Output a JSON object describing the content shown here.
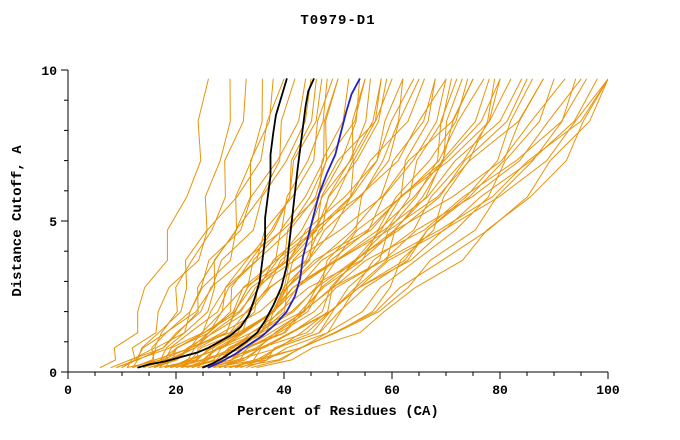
{
  "chart_data": {
    "type": "line",
    "title": "T0979-D1",
    "xlabel": "Percent of Residues (CA)",
    "ylabel": "Distance Cutoff, A",
    "xlim": [
      0,
      100
    ],
    "ylim": [
      0,
      10
    ],
    "x_major_ticks": [
      0,
      20,
      40,
      60,
      80,
      100
    ],
    "x_minor_step": 5,
    "y_major_ticks": [
      0,
      5,
      10
    ],
    "y_minor_step": 1,
    "grid": false,
    "legend": "none",
    "colors": {
      "ensemble": "#E8940B",
      "black_models": "#000000",
      "blue_model": "#2222CC",
      "axis": "#000000"
    },
    "highlight_series": [
      {
        "name": "black-model-1",
        "color": "#000000",
        "width": 1.8,
        "points": [
          [
            13,
            0.15
          ],
          [
            15,
            0.25
          ],
          [
            18,
            0.35
          ],
          [
            21,
            0.5
          ],
          [
            24,
            0.65
          ],
          [
            26,
            0.8
          ],
          [
            28,
            1.0
          ],
          [
            30,
            1.2
          ],
          [
            32,
            1.5
          ],
          [
            33.5,
            1.9
          ],
          [
            34.5,
            2.4
          ],
          [
            35.5,
            3.0
          ],
          [
            36,
            3.7
          ],
          [
            36.5,
            4.4
          ],
          [
            36.5,
            5.1
          ],
          [
            37,
            5.8
          ],
          [
            37.5,
            6.5
          ],
          [
            37.5,
            7.2
          ],
          [
            38,
            7.9
          ],
          [
            38.5,
            8.5
          ],
          [
            39.5,
            9.1
          ],
          [
            40.5,
            9.7
          ]
        ]
      },
      {
        "name": "black-model-2",
        "color": "#000000",
        "width": 1.8,
        "points": [
          [
            25,
            0.15
          ],
          [
            27,
            0.3
          ],
          [
            29,
            0.5
          ],
          [
            31,
            0.75
          ],
          [
            33,
            1.0
          ],
          [
            35,
            1.3
          ],
          [
            36.5,
            1.7
          ],
          [
            38,
            2.2
          ],
          [
            39.5,
            2.8
          ],
          [
            40.5,
            3.5
          ],
          [
            41,
            4.3
          ],
          [
            41.5,
            5.1
          ],
          [
            42,
            5.9
          ],
          [
            42.5,
            6.7
          ],
          [
            43,
            7.4
          ],
          [
            43.5,
            8.1
          ],
          [
            44,
            8.8
          ],
          [
            44.5,
            9.3
          ],
          [
            45.5,
            9.7
          ]
        ]
      },
      {
        "name": "blue-model",
        "color": "#2222CC",
        "width": 1.8,
        "points": [
          [
            26,
            0.15
          ],
          [
            28.5,
            0.35
          ],
          [
            31,
            0.6
          ],
          [
            33.5,
            0.9
          ],
          [
            36,
            1.2
          ],
          [
            38.5,
            1.6
          ],
          [
            40.5,
            2.0
          ],
          [
            42,
            2.5
          ],
          [
            43,
            3.1
          ],
          [
            43.5,
            3.8
          ],
          [
            44.5,
            4.5
          ],
          [
            45.5,
            5.2
          ],
          [
            46.5,
            5.9
          ],
          [
            48,
            6.6
          ],
          [
            49.5,
            7.2
          ],
          [
            50.5,
            7.9
          ],
          [
            51.5,
            8.6
          ],
          [
            52.5,
            9.2
          ],
          [
            54,
            9.7
          ]
        ]
      }
    ],
    "ensemble": {
      "color": "#E8940B",
      "width": 1,
      "y_levels": [
        0.15,
        0.4,
        0.8,
        1.3,
        2.0,
        2.8,
        3.7,
        4.7,
        5.8,
        7.0,
        8.3,
        9.7
      ],
      "profiles": {
        "A": [
          0,
          0.15,
          0.28,
          0.4,
          0.5,
          0.58,
          0.66,
          0.74,
          0.82,
          0.89,
          0.95,
          1
        ],
        "B": [
          0,
          0.08,
          0.17,
          0.27,
          0.37,
          0.47,
          0.57,
          0.67,
          0.77,
          0.86,
          0.94,
          1
        ],
        "C": [
          0,
          0.04,
          0.09,
          0.16,
          0.24,
          0.33,
          0.44,
          0.56,
          0.69,
          0.81,
          0.92,
          1
        ]
      },
      "jitters": [
        [
          0,
          1.2,
          -0.8,
          1.5,
          -0.5,
          -1.2,
          1.0,
          -1.0,
          0.6,
          1.4,
          -0.7,
          0
        ],
        [
          0,
          -1.0,
          1.3,
          0.4,
          1.1,
          -1.4,
          -0.6,
          0.9,
          1.2,
          -0.9,
          0.8,
          0
        ],
        [
          0,
          0.7,
          -1.2,
          -0.6,
          1.4,
          0.8,
          -1.1,
          1.2,
          -0.8,
          0.5,
          1.1,
          0
        ]
      ],
      "curves": [
        {
          "x0": 6,
          "x1": 26,
          "p": "B",
          "j": 0
        },
        {
          "x0": 8,
          "x1": 38,
          "p": "A",
          "j": 1
        },
        {
          "x0": 9,
          "x1": 30,
          "p": "A",
          "j": 2
        },
        {
          "x0": 9,
          "x1": 45,
          "p": "B",
          "j": 2
        },
        {
          "x0": 10,
          "x1": 40,
          "p": "C",
          "j": 0
        },
        {
          "x0": 10,
          "x1": 55,
          "p": "B",
          "j": 1
        },
        {
          "x0": 11,
          "x1": 33,
          "p": "B",
          "j": 1
        },
        {
          "x0": 11,
          "x1": 48,
          "p": "A",
          "j": 2
        },
        {
          "x0": 12,
          "x1": 42,
          "p": "B",
          "j": 0
        },
        {
          "x0": 12,
          "x1": 60,
          "p": "C",
          "j": 1
        },
        {
          "x0": 12,
          "x1": 46,
          "p": "A",
          "j": 1
        },
        {
          "x0": 13,
          "x1": 36,
          "p": "A",
          "j": 2
        },
        {
          "x0": 13,
          "x1": 50,
          "p": "A",
          "j": 0
        },
        {
          "x0": 14,
          "x1": 58,
          "p": "B",
          "j": 2
        },
        {
          "x0": 14,
          "x1": 44,
          "p": "C",
          "j": 2
        },
        {
          "x0": 14,
          "x1": 49,
          "p": "B",
          "j": 0
        },
        {
          "x0": 15,
          "x1": 65,
          "p": "B",
          "j": 0
        },
        {
          "x0": 15,
          "x1": 52,
          "p": "A",
          "j": 1
        },
        {
          "x0": 16,
          "x1": 70,
          "p": "C",
          "j": 0
        },
        {
          "x0": 16,
          "x1": 47,
          "p": "B",
          "j": 1
        },
        {
          "x0": 16,
          "x1": 59,
          "p": "B",
          "j": 2
        },
        {
          "x0": 17,
          "x1": 56,
          "p": "A",
          "j": 2
        },
        {
          "x0": 17,
          "x1": 75,
          "p": "C",
          "j": 1
        },
        {
          "x0": 18,
          "x1": 62,
          "p": "B",
          "j": 0
        },
        {
          "x0": 18,
          "x1": 50,
          "p": "A",
          "j": 0
        },
        {
          "x0": 18,
          "x1": 66,
          "p": "C",
          "j": 1
        },
        {
          "x0": 19,
          "x1": 68,
          "p": "B",
          "j": 1
        },
        {
          "x0": 19,
          "x1": 82,
          "p": "C",
          "j": 2
        },
        {
          "x0": 19,
          "x1": 54,
          "p": "A",
          "j": 2
        },
        {
          "x0": 20,
          "x1": 58,
          "p": "A",
          "j": 1
        },
        {
          "x0": 20,
          "x1": 74,
          "p": "B",
          "j": 2
        },
        {
          "x0": 21,
          "x1": 64,
          "p": "C",
          "j": 0
        },
        {
          "x0": 21,
          "x1": 88,
          "p": "C",
          "j": 1
        },
        {
          "x0": 21,
          "x1": 71,
          "p": "A",
          "j": 1
        },
        {
          "x0": 22,
          "x1": 55,
          "p": "A",
          "j": 0
        },
        {
          "x0": 22,
          "x1": 78,
          "p": "B",
          "j": 1
        },
        {
          "x0": 23,
          "x1": 70,
          "p": "B",
          "j": 2
        },
        {
          "x0": 23,
          "x1": 92,
          "p": "C",
          "j": 0
        },
        {
          "x0": 23,
          "x1": 80,
          "p": "C",
          "j": 2
        },
        {
          "x0": 24,
          "x1": 62,
          "p": "A",
          "j": 2
        },
        {
          "x0": 24,
          "x1": 84,
          "p": "C",
          "j": 1
        },
        {
          "x0": 25,
          "x1": 75,
          "p": "B",
          "j": 0
        },
        {
          "x0": 25,
          "x1": 96,
          "p": "C",
          "j": 2
        },
        {
          "x0": 26,
          "x1": 68,
          "p": "A",
          "j": 1
        },
        {
          "x0": 26,
          "x1": 88,
          "p": "B",
          "j": 0
        },
        {
          "x0": 26,
          "x1": 77,
          "p": "C",
          "j": 0
        },
        {
          "x0": 27,
          "x1": 72,
          "p": "A",
          "j": 0
        },
        {
          "x0": 27,
          "x1": 100,
          "p": "C",
          "j": 1
        },
        {
          "x0": 28,
          "x1": 80,
          "p": "B",
          "j": 2
        },
        {
          "x0": 28,
          "x1": 95,
          "p": "C",
          "j": 0
        },
        {
          "x0": 29,
          "x1": 73,
          "p": "A",
          "j": 0
        },
        {
          "x0": 29,
          "x1": 85,
          "p": "C",
          "j": 1
        },
        {
          "x0": 30,
          "x1": 86,
          "p": "B",
          "j": 0
        },
        {
          "x0": 30,
          "x1": 100,
          "p": "B",
          "j": 1
        },
        {
          "x0": 31,
          "x1": 98,
          "p": "C",
          "j": 2
        },
        {
          "x0": 31,
          "x1": 79,
          "p": "A",
          "j": 2
        },
        {
          "x0": 32,
          "x1": 90,
          "p": "B",
          "j": 1
        },
        {
          "x0": 33,
          "x1": 100,
          "p": "C",
          "j": 0
        },
        {
          "x0": 34,
          "x1": 94,
          "p": "B",
          "j": 2
        },
        {
          "x0": 35,
          "x1": 100,
          "p": "B",
          "j": 0
        }
      ]
    }
  }
}
